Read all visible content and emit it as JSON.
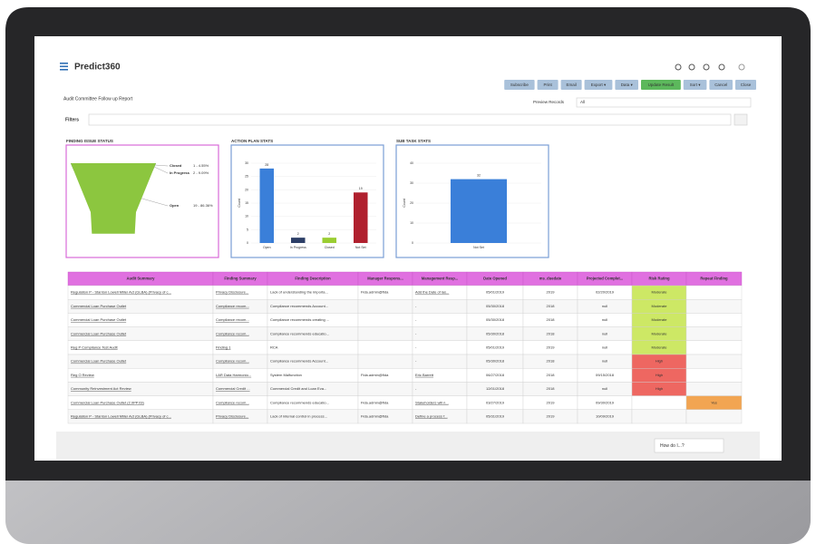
{
  "app": {
    "logo": "Predict360"
  },
  "toolbar": {
    "buttons": [
      "Subscribe",
      "Print",
      "Email",
      "Export ▾",
      "Data ▾",
      "Update Result",
      "Sort ▾",
      "Cancel",
      "Close"
    ],
    "colors": [
      "#a9c1da",
      "#a9c1da",
      "#a9c1da",
      "#a9c1da",
      "#a9c1da",
      "#5cb85c",
      "#a9c1da",
      "#a9c1da",
      "#a9c1da"
    ]
  },
  "report": {
    "title": "Audit Committee Follow up Report",
    "preview_label": "Preview Records",
    "preview_value": "All",
    "filters": "Filters"
  },
  "chart_data": [
    {
      "type": "funnel",
      "title": "FINDING ISSUE STATUS",
      "border": "#d86bd8",
      "categories": [
        "Closed",
        "In Progress",
        "Open"
      ],
      "values": [
        1,
        2,
        19
      ],
      "value_labels": [
        "1 - 4.55%",
        "2 - 9.09%",
        "19 - 86.36%"
      ],
      "colors": [
        "#1f2f4f",
        "#5a7fa8",
        "#8cc63f"
      ]
    },
    {
      "type": "bar",
      "title": "ACTION PLAN STATS",
      "border": "#7a9ed6",
      "y_label": "Count",
      "categories": [
        "Open",
        "In Progress",
        "Closed",
        "Not Set"
      ],
      "values": [
        28,
        2,
        2,
        19
      ],
      "colors": [
        "#3a7fd9",
        "#2c3e66",
        "#9acd32",
        "#b0202e"
      ],
      "ylim": [
        0,
        30
      ],
      "yticks": [
        0,
        5,
        10,
        15,
        20,
        25,
        30
      ],
      "grid": true
    },
    {
      "type": "bar",
      "title": "SUB TASK STATS",
      "border": "#7a9ed6",
      "y_label": "Count",
      "categories": [
        "Not Set"
      ],
      "values": [
        32
      ],
      "colors": [
        "#3a7fd9"
      ],
      "ylim": [
        0,
        40
      ],
      "yticks": [
        0,
        10,
        20,
        30,
        40
      ],
      "grid": true
    }
  ],
  "table": {
    "header_color": "#e070e0",
    "link_columns": [
      0,
      1,
      4
    ],
    "cell_colors": {
      "Moderate": "#cde865",
      "High": "#ee6761",
      "Yes": "#f2a552"
    },
    "headers": [
      "Audit Summary",
      "Finding Summary",
      "Finding Description",
      "Manager Respons...",
      "Management Resp...",
      "Date Opened",
      "ms_duedate",
      "Projected Complet...",
      "Risk Rating",
      "Repeat Finding"
    ],
    "rows": [
      [
        "Regulation P - Stanton Lowell Miller Act (GLBA) (Privacy of c...",
        "Privacy Disclosure...",
        "Lack of understanding the importa...",
        "Fida.admin@fida",
        "Add the Date of las...",
        "05/01/2019",
        "2019",
        "02/20/2019",
        "Moderate",
        null
      ],
      [
        "Commercial Loan Purchase Outlet",
        "Compliance recom...",
        "Compliance recommends Account...",
        null,
        "-",
        "05/30/2018",
        "2018",
        "null",
        "Moderate",
        null
      ],
      [
        "Commercial Loan Purchase Outlet",
        "Compliance recom...",
        "Compliance recommends creating ...",
        null,
        "-",
        "05/30/2018",
        "2018",
        "null",
        "Moderate",
        null
      ],
      [
        "Commercial Loan Purchase Outlet",
        "Compliance recom...",
        "Compliance recommends educatio...",
        null,
        "-",
        "05/30/2018",
        "2018",
        "null",
        "Moderate",
        null
      ],
      [
        "Reg P Compliance Test Audit",
        "Finding 1",
        "RCA",
        null,
        "-",
        "05/01/2019",
        "2019",
        "null",
        "Moderate",
        null
      ],
      [
        "Commercial Loan Purchase Outlet",
        "Compliance recom...",
        "Compliance recommends Account...",
        null,
        "-",
        "05/30/2018",
        "2018",
        "null",
        "High",
        null
      ],
      [
        "Reg O Review",
        "LAR Data Harmonio...",
        "System Malfunction",
        "Fida.admin@fida",
        "Eric Barrett",
        "06/27/2018",
        "2018",
        "09/15/2018",
        "High",
        null
      ],
      [
        "Community Reinvestment Act Review",
        "Commercial Credit ...",
        "Commercial Credit and Loan Eva...",
        null,
        "-",
        "12/01/2018",
        "2018",
        "null",
        "High",
        null
      ],
      [
        "Commercial Loan Purchase Outlet (2.0PP.03)",
        "Compliance recom...",
        "Compliance recommends educatio...",
        "Fida.admin@fida",
        "Stakeholders will n...",
        "03/27/2019",
        "2019",
        "09/30/2019",
        null,
        "Yes"
      ],
      [
        "Regulation P - Stanton Lowell Miller Act (GLBA) (Privacy of c...",
        "Privacy Disclosure...",
        "Lack of internal control in process...",
        "Fida.admin@fida",
        "Define a process f...",
        "05/31/2019",
        "2019",
        "10/09/2019",
        null,
        null
      ]
    ]
  },
  "footer": {
    "help": "How do I...?"
  }
}
